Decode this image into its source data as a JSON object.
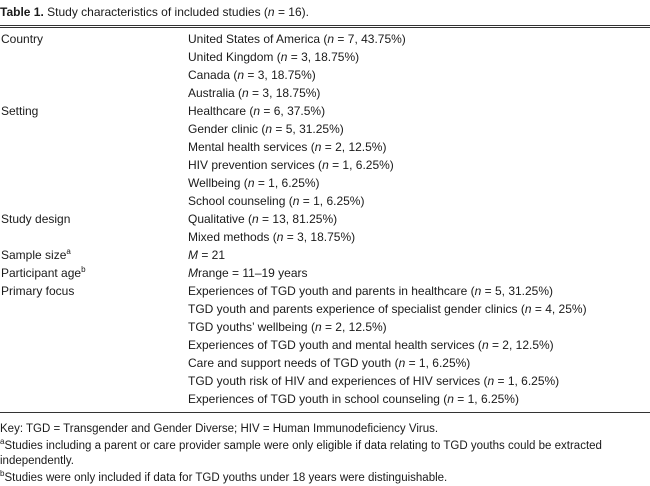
{
  "caption": {
    "label": "Table 1.",
    "text_pre": "Study characteristics of included studies (",
    "n_letter": "n",
    "text_post": " = 16)."
  },
  "rows": [
    {
      "label": "Country",
      "values": [
        {
          "pre": "United States of America (",
          "n": "n",
          "post": " = 7, 43.75%)"
        },
        {
          "pre": "United Kingdom (",
          "n": "n",
          "post": " = 3, 18.75%)"
        },
        {
          "pre": "Canada (",
          "n": "n",
          "post": " = 3, 18.75%)"
        },
        {
          "pre": "Australia (",
          "n": "n",
          "post": " = 3, 18.75%)"
        }
      ]
    },
    {
      "label": "Setting",
      "values": [
        {
          "pre": "Healthcare (",
          "n": "n",
          "post": " = 6, 37.5%)"
        },
        {
          "pre": "Gender clinic (",
          "n": "n",
          "post": " = 5, 31.25%)"
        },
        {
          "pre": "Mental health services (",
          "n": "n",
          "post": " = 2, 12.5%)"
        },
        {
          "pre": "HIV prevention services (",
          "n": "n",
          "post": " = 1, 6.25%)"
        },
        {
          "pre": "Wellbeing (",
          "n": "n",
          "post": " = 1, 6.25%)"
        },
        {
          "pre": "School counseling (",
          "n": "n",
          "post": " = 1, 6.25%)"
        }
      ]
    },
    {
      "label": "Study design",
      "values": [
        {
          "pre": "Qualitative (",
          "n": "n",
          "post": " = 13, 81.25%)"
        },
        {
          "pre": "Mixed methods (",
          "n": "n",
          "post": " = 3, 18.75%)"
        }
      ]
    },
    {
      "label": "Sample size",
      "sup": "a",
      "values": [
        {
          "pre": "",
          "n": "M",
          "post": " = 21"
        }
      ]
    },
    {
      "label": "Participant age",
      "sup": "b",
      "values": [
        {
          "pre": "",
          "n": "M",
          "post": "range = 11–19 years"
        }
      ]
    },
    {
      "label": "Primary focus",
      "values": [
        {
          "pre": "Experiences of TGD youth and parents in healthcare (",
          "n": "n",
          "post": " = 5, 31.25%)"
        },
        {
          "pre": "TGD youth and parents experience of specialist gender clinics (",
          "n": "n",
          "post": " = 4, 25%)"
        },
        {
          "pre": "TGD youths’ wellbeing (",
          "n": "n",
          "post": " = 2, 12.5%)"
        },
        {
          "pre": "Experiences of TGD youth and mental health services (",
          "n": "n",
          "post": " = 2, 12.5%)"
        },
        {
          "pre": "Care and support needs of TGD youth (",
          "n": "n",
          "post": " = 1, 6.25%)"
        },
        {
          "pre": "TGD youth risk of HIV and experiences of HIV services (",
          "n": "n",
          "post": " = 1, 6.25%)"
        },
        {
          "pre": "Experiences of TGD youth in school counseling (",
          "n": "n",
          "post": " = 1, 6.25%)"
        }
      ]
    }
  ],
  "footnotes": {
    "key": "Key: TGD = Transgender and Gender Diverse; HIV = Human Immunodeficiency Virus.",
    "a_mark": "a",
    "a_text": "Studies including a parent or care provider sample were only eligible if data relating to TGD youths could be extracted independently.",
    "b_mark": "b",
    "b_text": "Studies were only included if data for TGD youths under 18 years were distinguishable."
  }
}
